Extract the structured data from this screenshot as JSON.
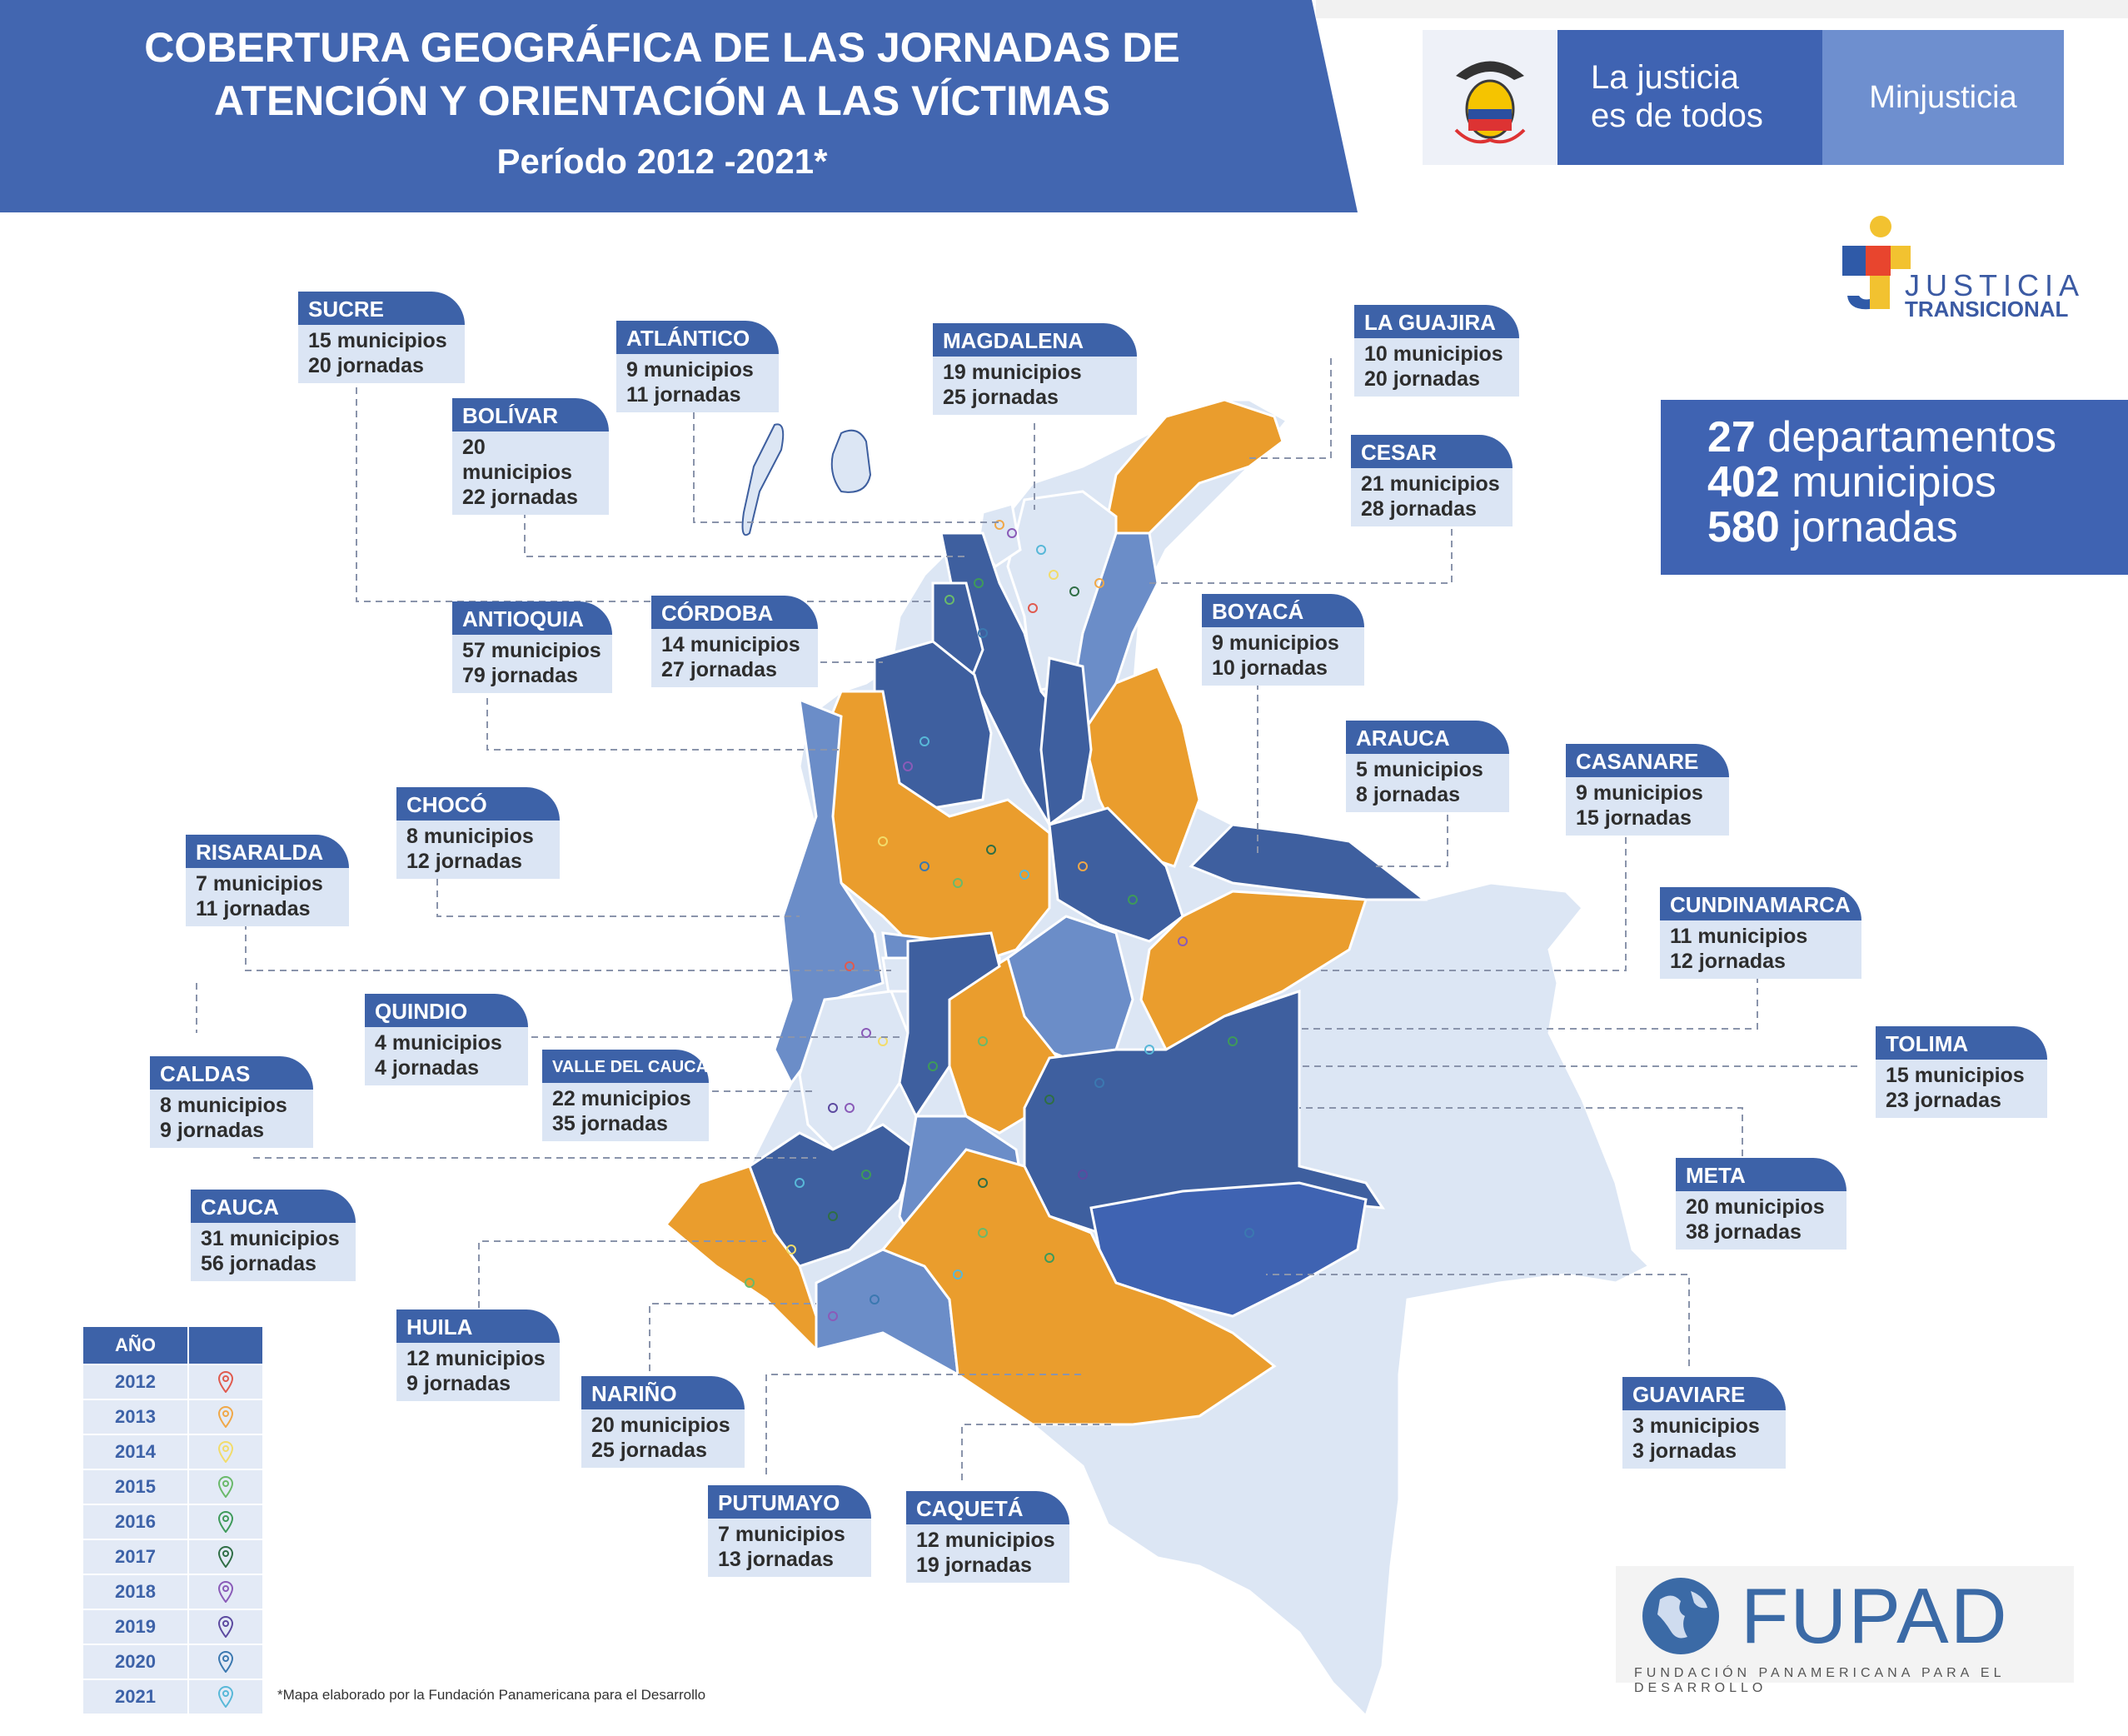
{
  "header": {
    "title_line1": "COBERTURA GEOGRÁFICA DE LAS JORNADAS DE",
    "title_line2": "ATENCIÓN Y ORIENTACIÓN A LAS VÍCTIMAS",
    "period": "Período 2012 -2021*"
  },
  "brand": {
    "slogan_line1": "La justicia",
    "slogan_line2": "es de todos",
    "ministry": "Minjusticia"
  },
  "jt_logo": {
    "line1": "JUSTICIA",
    "line2": "TRANSICIONAL"
  },
  "totals": [
    {
      "value": "27",
      "label": "departamentos"
    },
    {
      "value": "402",
      "label": "municipios"
    },
    {
      "value": "580",
      "label": "jornadas"
    }
  ],
  "departments": [
    {
      "name": "SUCRE",
      "municipios": "15 municipios",
      "jornadas": "20 jornadas"
    },
    {
      "name": "ATLÁNTICO",
      "municipios": "9 municipios",
      "jornadas": "11 jornadas"
    },
    {
      "name": "MAGDALENA",
      "municipios": "19 municipios",
      "jornadas": "25 jornadas"
    },
    {
      "name": "LA GUAJIRA",
      "municipios": "10 municipios",
      "jornadas": "20 jornadas"
    },
    {
      "name": "BOLÍVAR",
      "municipios": "20 municipios",
      "jornadas": "22 jornadas"
    },
    {
      "name": "CESAR",
      "municipios": "21 municipios",
      "jornadas": "28 jornadas"
    },
    {
      "name": "ANTIOQUIA",
      "municipios": "57 municipios",
      "jornadas": "79 jornadas"
    },
    {
      "name": "CÓRDOBA",
      "municipios": "14 municipios",
      "jornadas": "27 jornadas"
    },
    {
      "name": "BOYACÁ",
      "municipios": "9 municipios",
      "jornadas": "10 jornadas"
    },
    {
      "name": "ARAUCA",
      "municipios": "5 municipios",
      "jornadas": "8 jornadas"
    },
    {
      "name": "CASANARE",
      "municipios": "9 municipios",
      "jornadas": "15 jornadas"
    },
    {
      "name": "CHOCÓ",
      "municipios": "8 municipios",
      "jornadas": "12 jornadas"
    },
    {
      "name": "RISARALDA",
      "municipios": "7 municipios",
      "jornadas": "11 jornadas"
    },
    {
      "name": "CUNDINAMARCA",
      "municipios": "11 municipios",
      "jornadas": "12 jornadas"
    },
    {
      "name": "QUINDIO",
      "municipios": "4 municipios",
      "jornadas": "4 jornadas"
    },
    {
      "name": "VALLE DEL CAUCA",
      "municipios": "22 municipios",
      "jornadas": "35 jornadas"
    },
    {
      "name": "TOLIMA",
      "municipios": "15 municipios",
      "jornadas": "23 jornadas"
    },
    {
      "name": "CALDAS",
      "municipios": "8 municipios",
      "jornadas": "9 jornadas"
    },
    {
      "name": "META",
      "municipios": "20 municipios",
      "jornadas": "38 jornadas"
    },
    {
      "name": "CAUCA",
      "municipios": "31 municipios",
      "jornadas": "56 jornadas"
    },
    {
      "name": "HUILA",
      "municipios": "12 municipios",
      "jornadas": "9 jornadas"
    },
    {
      "name": "NARIÑO",
      "municipios": "20 municipios",
      "jornadas": "25 jornadas"
    },
    {
      "name": "GUAVIARE",
      "municipios": "3 municipios",
      "jornadas": "3 jornadas"
    },
    {
      "name": "PUTUMAYO",
      "municipios": "7 municipios",
      "jornadas": "13 jornadas"
    },
    {
      "name": "CAQUETÁ",
      "municipios": "12 municipios",
      "jornadas": "19 jornadas"
    }
  ],
  "legend": {
    "header": "AÑO",
    "years": [
      {
        "year": "2012",
        "color": "#e05a4e"
      },
      {
        "year": "2013",
        "color": "#f0a848"
      },
      {
        "year": "2014",
        "color": "#f2dc6a"
      },
      {
        "year": "2015",
        "color": "#6ab96a"
      },
      {
        "year": "2016",
        "color": "#3e9a5a"
      },
      {
        "year": "2017",
        "color": "#2f6e45"
      },
      {
        "year": "2018",
        "color": "#8a5bb8"
      },
      {
        "year": "2019",
        "color": "#5c4aa0"
      },
      {
        "year": "2020",
        "color": "#3b78b0"
      },
      {
        "year": "2021",
        "color": "#58b8d8"
      }
    ]
  },
  "note": "*Mapa elaborado por la Fundación Panamericana para el Desarrollo",
  "fupad": {
    "word": "FUPAD",
    "sub": "FUNDACIÓN PANAMERICANA PARA EL DESARROLLO"
  },
  "colors": {
    "dark_blue": "#3e5f9f",
    "mid_blue": "#6b8dc8",
    "light_blue": "#dce6f4",
    "orange": "#ea9d2d",
    "header_blue": "#4266b0"
  }
}
